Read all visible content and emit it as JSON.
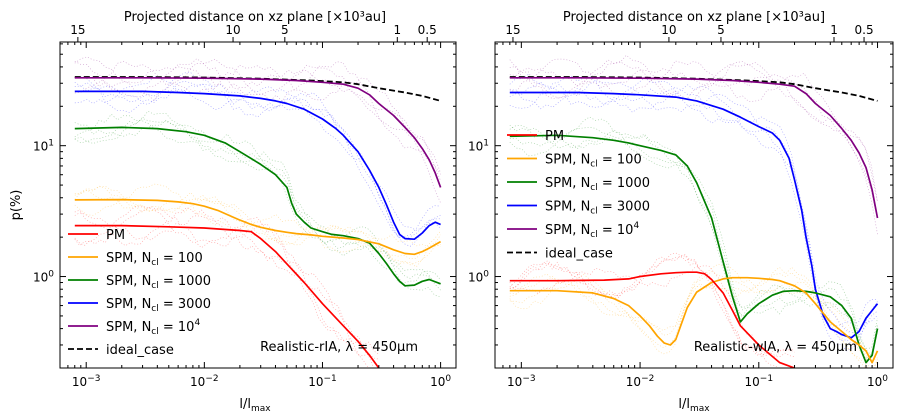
{
  "figure": {
    "ylabel": "p(%)"
  },
  "colors": {
    "PM": "#ff0000",
    "N100": "#ffa500",
    "N1000": "#008000",
    "N3000": "#0000ff",
    "N1e4": "#800080",
    "ideal": "#000000"
  },
  "chart_data": [
    {
      "type": "line",
      "name": "left",
      "title_top": "Projected distance on xz plane [×10³au]",
      "top_ticks": [
        {
          "label": "15",
          "x": 0.00085
        },
        {
          "label": "10",
          "x": 0.0175
        },
        {
          "label": "5",
          "x": 0.048
        },
        {
          "label": "1",
          "x": 0.43
        },
        {
          "label": "0.5",
          "x": 0.77
        }
      ],
      "xlabel": "l/l",
      "xlabel_sub": "max",
      "ylabel": "p(%)",
      "xscale": "log",
      "yscale": "log",
      "xlim": [
        0.0006,
        1.35
      ],
      "ylim": [
        0.2,
        62
      ],
      "xticks": [
        {
          "v": 0.001,
          "exp": "−3"
        },
        {
          "v": 0.01,
          "exp": "−2"
        },
        {
          "v": 0.1,
          "exp": "−1"
        },
        {
          "v": 1,
          "exp": "0"
        }
      ],
      "yticks": [
        {
          "v": 1,
          "exp": "0"
        },
        {
          "v": 10,
          "exp": "1"
        }
      ],
      "annotation": "Realistic-rIA, λ = 450μm",
      "legend": {
        "position": "lower-left",
        "entries": [
          {
            "key": "PM",
            "label": "PM"
          },
          {
            "key": "N100",
            "label": "SPM, N",
            "sub": "cl",
            "tail": " = 100"
          },
          {
            "key": "N1000",
            "label": "SPM, N",
            "sub": "cl",
            "tail": " = 1000"
          },
          {
            "key": "N3000",
            "label": "SPM, N",
            "sub": "cl",
            "tail": " = 3000"
          },
          {
            "key": "N1e4",
            "label": "SPM, N",
            "sub": "cl",
            "tail": " = 10",
            "sup": "4"
          },
          {
            "key": "ideal",
            "label": "ideal_case",
            "dashed": true
          }
        ]
      },
      "series": [
        {
          "key": "ideal",
          "dashed": true,
          "x": [
            0.0008,
            0.003,
            0.01,
            0.03,
            0.08,
            0.15,
            0.2,
            0.3,
            0.5,
            0.7,
            1.0
          ],
          "y": [
            33.5,
            33.5,
            33.2,
            32.5,
            31.5,
            30.5,
            29.5,
            27.5,
            25.5,
            24,
            22
          ]
        },
        {
          "key": "N1e4",
          "x": [
            0.0008,
            0.003,
            0.01,
            0.03,
            0.06,
            0.1,
            0.15,
            0.2,
            0.25,
            0.3,
            0.4,
            0.5,
            0.6,
            0.7,
            0.8,
            0.9,
            1.0
          ],
          "y": [
            33,
            33,
            32.8,
            32.3,
            31.5,
            30.5,
            29.5,
            27.5,
            24.5,
            21,
            17,
            13.8,
            11.5,
            9.5,
            7.8,
            6.2,
            4.8
          ]
        },
        {
          "key": "N3000",
          "x": [
            0.0008,
            0.003,
            0.006,
            0.01,
            0.02,
            0.03,
            0.04,
            0.05,
            0.07,
            0.1,
            0.13,
            0.15,
            0.2,
            0.25,
            0.3,
            0.35,
            0.4,
            0.45,
            0.5,
            0.6,
            0.7,
            0.8,
            0.9,
            1.0
          ],
          "y": [
            26,
            26,
            25.5,
            25,
            24,
            23,
            22,
            21,
            19,
            16,
            13.5,
            12,
            9,
            6.5,
            4.8,
            3.5,
            2.6,
            2.1,
            1.95,
            1.93,
            2.15,
            2.45,
            2.6,
            2.5
          ]
        },
        {
          "key": "N1000",
          "x": [
            0.0008,
            0.002,
            0.004,
            0.007,
            0.01,
            0.015,
            0.02,
            0.03,
            0.04,
            0.05,
            0.055,
            0.06,
            0.07,
            0.08,
            0.1,
            0.12,
            0.15,
            0.2,
            0.25,
            0.3,
            0.35,
            0.4,
            0.45,
            0.5,
            0.6,
            0.7,
            0.8,
            1.0
          ],
          "y": [
            13.5,
            13.8,
            13.5,
            12.8,
            12,
            10.5,
            9,
            7.2,
            6,
            4.8,
            3.6,
            3.0,
            2.6,
            2.35,
            2.2,
            2.1,
            2.05,
            1.95,
            1.8,
            1.5,
            1.25,
            1.05,
            0.92,
            0.85,
            0.86,
            0.92,
            0.95,
            0.88
          ]
        },
        {
          "key": "N100",
          "x": [
            0.0008,
            0.002,
            0.004,
            0.006,
            0.008,
            0.01,
            0.013,
            0.016,
            0.02,
            0.025,
            0.03,
            0.04,
            0.05,
            0.06,
            0.08,
            0.1,
            0.15,
            0.2,
            0.3,
            0.4,
            0.5,
            0.6,
            0.7,
            0.8,
            1.0
          ],
          "y": [
            3.85,
            3.87,
            3.82,
            3.72,
            3.6,
            3.45,
            3.2,
            2.95,
            2.7,
            2.5,
            2.38,
            2.25,
            2.18,
            2.13,
            2.08,
            2.03,
            1.97,
            1.92,
            1.78,
            1.6,
            1.5,
            1.48,
            1.55,
            1.65,
            1.85
          ]
        },
        {
          "key": "PM",
          "x": [
            0.0008,
            0.002,
            0.005,
            0.01,
            0.02,
            0.025,
            0.03,
            0.04,
            0.05,
            0.07,
            0.1,
            0.15,
            0.2,
            0.25,
            0.3
          ],
          "y": [
            2.45,
            2.45,
            2.4,
            2.35,
            2.25,
            2.2,
            1.95,
            1.55,
            1.25,
            0.9,
            0.62,
            0.42,
            0.32,
            0.25,
            0.2
          ]
        }
      ]
    },
    {
      "type": "line",
      "name": "right",
      "title_top": "Projected distance on xz plane [×10³au]",
      "top_ticks": [
        {
          "label": "15",
          "x": 0.00085
        },
        {
          "label": "10",
          "x": 0.0175
        },
        {
          "label": "5",
          "x": 0.048
        },
        {
          "label": "1",
          "x": 0.43
        },
        {
          "label": "0.5",
          "x": 0.77
        }
      ],
      "xlabel": "l/l",
      "xlabel_sub": "max",
      "xscale": "log",
      "yscale": "log",
      "xlim": [
        0.0006,
        1.35
      ],
      "ylim": [
        0.2,
        62
      ],
      "xticks": [
        {
          "v": 0.001,
          "exp": "−3"
        },
        {
          "v": 0.01,
          "exp": "−2"
        },
        {
          "v": 0.1,
          "exp": "−1"
        },
        {
          "v": 1,
          "exp": "0"
        }
      ],
      "yticks": [
        {
          "v": 1,
          "exp": "0"
        },
        {
          "v": 10,
          "exp": "1"
        }
      ],
      "annotation": "Realistic-wIA, λ = 450μm",
      "legend": {
        "position": "middle-left",
        "entries": [
          {
            "key": "PM",
            "label": "PM"
          },
          {
            "key": "N100",
            "label": "SPM, N",
            "sub": "cl",
            "tail": " = 100"
          },
          {
            "key": "N1000",
            "label": "SPM, N",
            "sub": "cl",
            "tail": " = 1000"
          },
          {
            "key": "N3000",
            "label": "SPM, N",
            "sub": "cl",
            "tail": " = 3000"
          },
          {
            "key": "N1e4",
            "label": "SPM, N",
            "sub": "cl",
            "tail": " = 10",
            "sup": "4"
          },
          {
            "key": "ideal",
            "label": "ideal_case",
            "dashed": true
          }
        ]
      },
      "series": [
        {
          "key": "ideal",
          "dashed": true,
          "x": [
            0.0008,
            0.003,
            0.01,
            0.03,
            0.08,
            0.15,
            0.2,
            0.3,
            0.5,
            0.7,
            1.0
          ],
          "y": [
            33.5,
            33.5,
            33.2,
            32.5,
            31.5,
            30.5,
            29.5,
            27.5,
            25.5,
            24,
            22
          ]
        },
        {
          "key": "N1e4",
          "x": [
            0.0008,
            0.003,
            0.01,
            0.03,
            0.06,
            0.1,
            0.15,
            0.2,
            0.25,
            0.3,
            0.4,
            0.5,
            0.6,
            0.7,
            0.8,
            0.9,
            1.0
          ],
          "y": [
            33,
            33,
            32.8,
            32.3,
            31.5,
            30.5,
            29.5,
            28.5,
            25,
            21,
            17,
            13.5,
            11,
            8.8,
            6.8,
            4.6,
            2.8
          ]
        },
        {
          "key": "N3000",
          "x": [
            0.0008,
            0.003,
            0.006,
            0.01,
            0.02,
            0.03,
            0.05,
            0.07,
            0.1,
            0.13,
            0.15,
            0.18,
            0.2,
            0.23,
            0.25,
            0.28,
            0.3,
            0.35,
            0.4,
            0.45,
            0.5,
            0.55,
            0.6,
            0.7,
            0.8,
            0.9,
            1.0
          ],
          "y": [
            25.5,
            25.5,
            25,
            24.5,
            23.5,
            22,
            19,
            16.5,
            14,
            12.5,
            11,
            8,
            5.5,
            3.2,
            2.0,
            1.2,
            0.8,
            0.5,
            0.4,
            0.38,
            0.36,
            0.35,
            0.34,
            0.38,
            0.48,
            0.55,
            0.62
          ]
        },
        {
          "key": "N1000",
          "x": [
            0.0008,
            0.002,
            0.004,
            0.006,
            0.008,
            0.01,
            0.015,
            0.02,
            0.025,
            0.03,
            0.04,
            0.05,
            0.06,
            0.07,
            0.08,
            0.1,
            0.13,
            0.16,
            0.2,
            0.25,
            0.3,
            0.4,
            0.5,
            0.6,
            0.7,
            0.8,
            0.9,
            1.0
          ],
          "y": [
            11.8,
            12,
            11.5,
            11,
            10.5,
            10,
            9.2,
            8.5,
            7,
            5.2,
            2.8,
            1.3,
            0.7,
            0.45,
            0.52,
            0.62,
            0.72,
            0.77,
            0.78,
            0.77,
            0.75,
            0.7,
            0.6,
            0.48,
            0.3,
            0.22,
            0.25,
            0.4
          ]
        },
        {
          "key": "N100",
          "x": [
            0.0008,
            0.002,
            0.004,
            0.006,
            0.008,
            0.01,
            0.012,
            0.014,
            0.016,
            0.018,
            0.02,
            0.022,
            0.025,
            0.03,
            0.04,
            0.05,
            0.06,
            0.08,
            0.1,
            0.13,
            0.15,
            0.2,
            0.25,
            0.3,
            0.4,
            0.5,
            0.6,
            0.7,
            0.8,
            0.9,
            1.0
          ],
          "y": [
            0.78,
            0.78,
            0.75,
            0.68,
            0.6,
            0.5,
            0.42,
            0.35,
            0.31,
            0.3,
            0.33,
            0.42,
            0.58,
            0.76,
            0.9,
            0.96,
            0.98,
            0.98,
            0.97,
            0.95,
            0.93,
            0.85,
            0.75,
            0.62,
            0.45,
            0.38,
            0.33,
            0.3,
            0.27,
            0.22,
            0.27
          ]
        },
        {
          "key": "PM",
          "x": [
            0.0008,
            0.002,
            0.005,
            0.008,
            0.01,
            0.015,
            0.02,
            0.025,
            0.03,
            0.035,
            0.04,
            0.05,
            0.06,
            0.07,
            0.1,
            0.15,
            0.2
          ],
          "y": [
            0.93,
            0.93,
            0.94,
            0.96,
            1.0,
            1.05,
            1.07,
            1.08,
            1.08,
            1.05,
            0.95,
            0.75,
            0.55,
            0.42,
            0.3,
            0.22,
            0.2
          ]
        }
      ]
    }
  ]
}
